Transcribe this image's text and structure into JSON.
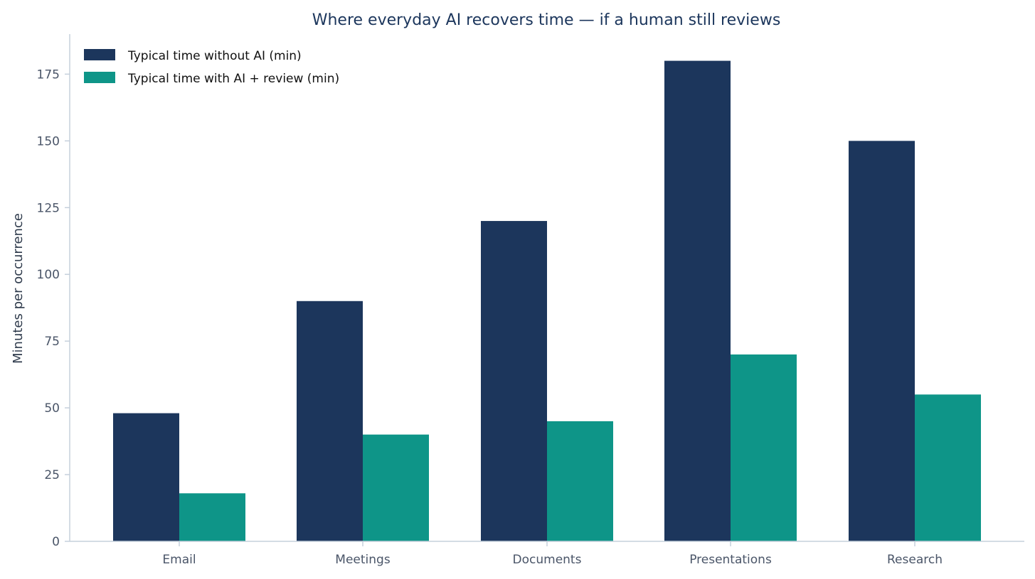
{
  "chart_data": {
    "type": "bar",
    "title": "Where everyday AI recovers time — if a human still reviews",
    "xlabel": "",
    "ylabel": "Minutes per occurrence",
    "categories": [
      "Email",
      "Meetings",
      "Documents",
      "Presentations",
      "Research"
    ],
    "series": [
      {
        "name": "Typical time without AI (min)",
        "values": [
          48,
          90,
          120,
          180,
          150
        ],
        "color": "#1c365c"
      },
      {
        "name": "Typical time with AI + review (min)",
        "values": [
          18,
          40,
          45,
          70,
          55
        ],
        "color": "#0e9588"
      }
    ],
    "ylim": [
      0,
      190
    ],
    "yticks": [
      0,
      25,
      50,
      75,
      100,
      125,
      150,
      175
    ],
    "ytick_labels": [
      "0",
      "25",
      "50",
      "75",
      "100",
      "125",
      "150",
      "175"
    ],
    "grid": false,
    "legend_position": "top-left",
    "colors": {
      "title": "#1c365c",
      "axis": "#c6d0dc",
      "tick_text": "#4a5568",
      "axis_label": "#2f3b4c"
    }
  }
}
